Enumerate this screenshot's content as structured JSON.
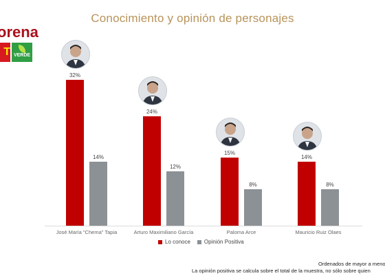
{
  "header": {
    "title": "Conocimiento y opinión de personajes"
  },
  "brand": {
    "party_name": "orena",
    "pt_mark": "T",
    "verde_label": "VERDE"
  },
  "chart_data": {
    "type": "bar",
    "categories": [
      "José María \"Chema\" Tapia",
      "Arturo Maximiliano García",
      "Paloma Arce",
      "Mauricio Ruiz Olaes"
    ],
    "series": [
      {
        "name": "Lo conoce",
        "values": [
          32,
          24,
          15,
          14
        ],
        "labels": [
          "32%",
          "24%",
          "15%",
          "14%"
        ],
        "color": "#c00000"
      },
      {
        "name": "Opinión Positiva",
        "values": [
          14,
          12,
          8,
          8
        ],
        "labels": [
          "14%",
          "12%",
          "8%",
          "8%"
        ],
        "color": "#8c9196"
      }
    ],
    "ylim": [
      0,
      32
    ],
    "grid": false,
    "legend_position": "bottom-center"
  },
  "legend": {
    "lo_conoce": "Lo conoce",
    "opinion_positiva": "Opinión Positiva"
  },
  "notes": {
    "order": "Ordenados de mayor a meno",
    "footnote": "La opinión positiva se calcula sobre el total de la muestra, no sólo sobre quien"
  },
  "colors": {
    "title": "#b8935a",
    "brand": "#a8111c",
    "red_series": "#c00000",
    "grey_series": "#8c9196"
  }
}
